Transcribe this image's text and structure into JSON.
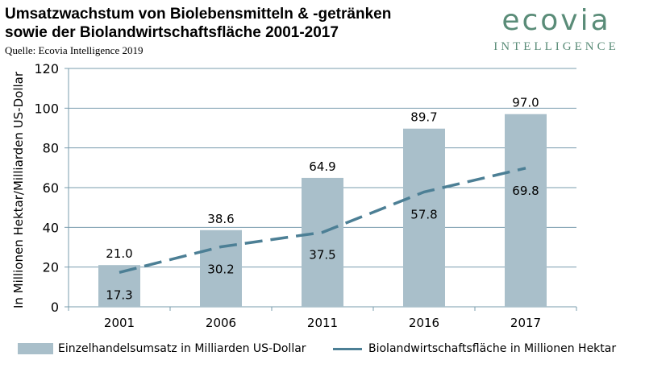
{
  "header": {
    "title_line1": "Umsatzwachstum von Biolebensmitteln & -getränken",
    "title_line2": "sowie der Biolandwirtschaftsfläche 2001-2017",
    "source": "Quelle: Ecovia Intelligence 2019"
  },
  "logo": {
    "name": "ecovia",
    "tagline": "INTELLIGENCE",
    "color": "#5a8c78"
  },
  "chart_data": {
    "type": "bar",
    "categories": [
      "2001",
      "2006",
      "2011",
      "2016",
      "2017"
    ],
    "series": [
      {
        "name": "Einzelhandelsumsatz in Milliarden US-Dollar",
        "type": "bar",
        "values": [
          21.0,
          38.6,
          64.9,
          89.7,
          97.0
        ],
        "labels": [
          "21.0",
          "38.6",
          "64.9",
          "89.7",
          "97.0"
        ],
        "color": "#a9bfca"
      },
      {
        "name": "Biolandwirtschaftsfläche in Millionen Hektar",
        "type": "line",
        "style": "dashed",
        "values": [
          17.3,
          30.2,
          37.5,
          57.8,
          69.8
        ],
        "labels": [
          "17.3",
          "30.2",
          "37.5",
          "57.8",
          "69.8"
        ],
        "color": "#4c7f95"
      }
    ],
    "ylabel": "In Millionen Hektar/Milliarden US-Dollar",
    "xlabel": "",
    "ylim": [
      0,
      120
    ],
    "yticks": [
      0,
      20,
      40,
      60,
      80,
      100,
      120
    ],
    "grid": true,
    "legend": "bottom"
  }
}
